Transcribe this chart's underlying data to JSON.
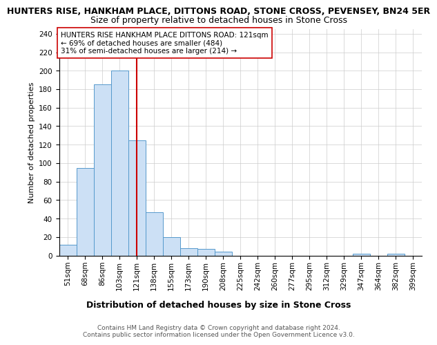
{
  "title": "HUNTERS RISE, HANKHAM PLACE, DITTONS ROAD, STONE CROSS, PEVENSEY, BN24 5ER",
  "subtitle": "Size of property relative to detached houses in Stone Cross",
  "xlabel": "Distribution of detached houses by size in Stone Cross",
  "ylabel": "Number of detached properties",
  "bin_labels": [
    "51sqm",
    "68sqm",
    "86sqm",
    "103sqm",
    "121sqm",
    "138sqm",
    "155sqm",
    "173sqm",
    "190sqm",
    "208sqm",
    "225sqm",
    "242sqm",
    "260sqm",
    "277sqm",
    "295sqm",
    "312sqm",
    "329sqm",
    "347sqm",
    "364sqm",
    "382sqm",
    "399sqm"
  ],
  "bar_heights": [
    12,
    95,
    185,
    200,
    125,
    47,
    20,
    8,
    7,
    4,
    0,
    0,
    0,
    0,
    0,
    0,
    0,
    2,
    0,
    2,
    0
  ],
  "bar_color": "#cce0f5",
  "bar_edge_color": "#5599cc",
  "vline_x_index": 4,
  "vline_color": "#cc0000",
  "annotation_text": "HUNTERS RISE HANKHAM PLACE DITTONS ROAD: 121sqm\n← 69% of detached houses are smaller (484)\n31% of semi-detached houses are larger (214) →",
  "annotation_box_color": "#ffffff",
  "annotation_box_edge_color": "#cc0000",
  "ylim": [
    0,
    245
  ],
  "yticks": [
    0,
    20,
    40,
    60,
    80,
    100,
    120,
    140,
    160,
    180,
    200,
    220,
    240
  ],
  "footer_text": "Contains HM Land Registry data © Crown copyright and database right 2024.\nContains public sector information licensed under the Open Government Licence v3.0.",
  "title_fontsize": 9,
  "subtitle_fontsize": 9,
  "xlabel_fontsize": 9,
  "ylabel_fontsize": 8,
  "tick_fontsize": 7.5,
  "annotation_fontsize": 7.5,
  "footer_fontsize": 6.5,
  "background_color": "#ffffff",
  "grid_color": "#cccccc"
}
